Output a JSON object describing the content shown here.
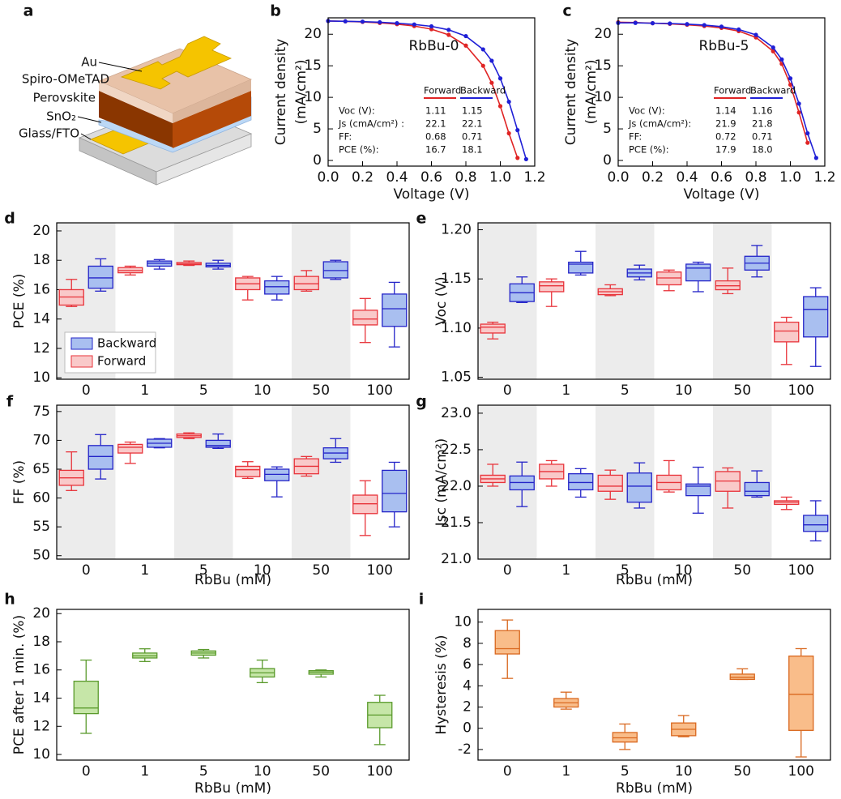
{
  "diagram": {
    "panel": "a",
    "labels": [
      "Au",
      "Spiro-OMeTAD",
      "Perovskite",
      "SnO₂",
      "Glass/FTO"
    ]
  },
  "chart_data": [
    {
      "panel": "b",
      "type": "line",
      "annotation": "RbBu-0",
      "xlabel": "Voltage (V)",
      "ylabel": [
        "Current density",
        "(mA/cm²)"
      ],
      "xlim": [
        0,
        1.2
      ],
      "ylim": [
        -0.9,
        22.6
      ],
      "xticks": [
        {
          "value": 0,
          "label": "0.0"
        },
        0.2,
        0.4,
        0.6,
        0.8,
        {
          "value": 1,
          "label": "1.0"
        },
        1.2
      ],
      "yticks": [
        0,
        5,
        10,
        15,
        20
      ],
      "x": [
        0,
        0.1,
        0.2,
        0.3,
        0.4,
        0.5,
        0.6,
        0.7,
        0.8,
        0.9,
        0.95,
        1.0,
        1.05,
        1.1,
        1.15
      ],
      "series": [
        {
          "name": "Forward",
          "color": "#e02424",
          "values": [
            22.1,
            22.05,
            21.95,
            21.8,
            21.6,
            21.3,
            20.8,
            19.9,
            18.2,
            15.0,
            12.3,
            8.6,
            4.3,
            0.4,
            null
          ]
        },
        {
          "name": "Backward",
          "color": "#1f1fd6",
          "values": [
            22.1,
            22.05,
            22.0,
            21.9,
            21.75,
            21.55,
            21.25,
            20.7,
            19.7,
            17.6,
            15.8,
            13.0,
            9.3,
            4.8,
            0.2
          ]
        }
      ],
      "table": [
        {
          "label": "Voc (V):",
          "values": [
            "1.11",
            "1.15"
          ]
        },
        {
          "label": "Js (cmA/cm²) :",
          "values": [
            "22.1",
            "22.1"
          ]
        },
        {
          "label": "FF:",
          "values": [
            "0.68",
            "0.71"
          ]
        },
        {
          "label": "PCE (%):",
          "values": [
            "16.7",
            "18.1"
          ]
        }
      ]
    },
    {
      "panel": "c",
      "type": "line",
      "annotation": "RbBu-5",
      "xlabel": "Voltage (V)",
      "ylabel": [
        "Current density",
        "(mA/cm²)"
      ],
      "xlim": [
        0,
        1.2
      ],
      "ylim": [
        -0.9,
        22.6
      ],
      "xticks": [
        {
          "value": 0,
          "label": "0.0"
        },
        0.2,
        0.4,
        0.6,
        0.8,
        {
          "value": 1,
          "label": "1.0"
        },
        1.2
      ],
      "yticks": [
        0,
        5,
        10,
        15,
        20
      ],
      "x": [
        0,
        0.1,
        0.2,
        0.3,
        0.4,
        0.5,
        0.6,
        0.7,
        0.8,
        0.9,
        0.95,
        1.0,
        1.05,
        1.1,
        1.15
      ],
      "series": [
        {
          "name": "Forward",
          "color": "#e02424",
          "values": [
            21.9,
            21.85,
            21.75,
            21.65,
            21.5,
            21.3,
            21.0,
            20.5,
            19.5,
            17.3,
            15.3,
            12.0,
            7.6,
            2.8,
            null
          ]
        },
        {
          "name": "Backward",
          "color": "#1f1fd6",
          "values": [
            21.8,
            21.8,
            21.75,
            21.7,
            21.6,
            21.45,
            21.2,
            20.75,
            19.9,
            17.9,
            16.0,
            13.0,
            9.0,
            4.3,
            0.4
          ]
        }
      ],
      "table": [
        {
          "label": "Voc (V):",
          "values": [
            "1.14",
            "1.16"
          ]
        },
        {
          "label": "Js (cmA/cm²):",
          "values": [
            "21.9",
            "21.8"
          ]
        },
        {
          "label": "FF:",
          "values": [
            "0.72",
            "0.71"
          ]
        },
        {
          "label": "PCE (%):",
          "values": [
            "17.9",
            "18.0"
          ]
        }
      ]
    },
    {
      "panel": "d",
      "type": "box",
      "ylabel": "PCE (%)",
      "band_shading": true,
      "legend": "lower left",
      "categories": [
        "0",
        "1",
        "5",
        "10",
        "50",
        "100"
      ],
      "ylim": [
        9.9,
        20.55
      ],
      "yticks": [
        10,
        12,
        14,
        16,
        18,
        20
      ],
      "series": [
        {
          "name": "Forward",
          "color": "#e8333a",
          "fill": "#f9c9c9",
          "values": [
            {
              "min": 14.85,
              "q1": 14.95,
              "median": 15.5,
              "q3": 16.0,
              "max": 16.7
            },
            {
              "min": 17.0,
              "q1": 17.15,
              "median": 17.3,
              "q3": 17.5,
              "max": 17.6
            },
            {
              "min": 17.65,
              "q1": 17.7,
              "median": 17.75,
              "q3": 17.85,
              "max": 17.95
            },
            {
              "min": 15.3,
              "q1": 16.0,
              "median": 16.4,
              "q3": 16.8,
              "max": 16.9
            },
            {
              "min": 15.9,
              "q1": 16.0,
              "median": 16.4,
              "q3": 16.9,
              "max": 17.3
            },
            {
              "min": 12.4,
              "q1": 13.6,
              "median": 14.0,
              "q3": 14.6,
              "max": 15.4
            }
          ]
        },
        {
          "name": "Backward",
          "color": "#2424c8",
          "fill": "#a9bff0",
          "values": [
            {
              "min": 15.9,
              "q1": 16.1,
              "median": 16.8,
              "q3": 17.6,
              "max": 18.1
            },
            {
              "min": 17.4,
              "q1": 17.6,
              "median": 17.8,
              "q3": 17.95,
              "max": 18.05
            },
            {
              "min": 17.4,
              "q1": 17.55,
              "median": 17.65,
              "q3": 17.8,
              "max": 18.0
            },
            {
              "min": 15.3,
              "q1": 15.7,
              "median": 16.2,
              "q3": 16.6,
              "max": 16.9
            },
            {
              "min": 16.7,
              "q1": 16.8,
              "median": 17.3,
              "q3": 17.9,
              "max": 18.0
            },
            {
              "min": 12.1,
              "q1": 13.5,
              "median": 14.7,
              "q3": 15.7,
              "max": 16.5
            }
          ]
        }
      ]
    },
    {
      "panel": "e",
      "type": "box",
      "ylabel": "Voc (V)",
      "band_shading": true,
      "categories": [
        "0",
        "1",
        "5",
        "10",
        "50",
        "100"
      ],
      "ylim": [
        1.048,
        1.207
      ],
      "yticks": [
        1.05,
        {
          "value": 1.1,
          "label": "1.10"
        },
        1.15,
        {
          "value": 1.2,
          "label": "1.20"
        }
      ],
      "series": [
        {
          "name": "Forward",
          "color": "#e8333a",
          "fill": "#f9c9c9",
          "values": [
            {
              "min": 1.089,
              "q1": 1.095,
              "median": 1.101,
              "q3": 1.104,
              "max": 1.106
            },
            {
              "min": 1.122,
              "q1": 1.137,
              "median": 1.143,
              "q3": 1.147,
              "max": 1.15
            },
            {
              "min": 1.133,
              "q1": 1.134,
              "median": 1.137,
              "q3": 1.14,
              "max": 1.144
            },
            {
              "min": 1.138,
              "q1": 1.144,
              "median": 1.151,
              "q3": 1.157,
              "max": 1.159
            },
            {
              "min": 1.135,
              "q1": 1.139,
              "median": 1.143,
              "q3": 1.148,
              "max": 1.161
            },
            {
              "min": 1.063,
              "q1": 1.086,
              "median": 1.097,
              "q3": 1.106,
              "max": 1.111
            }
          ]
        },
        {
          "name": "Backward",
          "color": "#2424c8",
          "fill": "#a9bff0",
          "values": [
            {
              "min": 1.126,
              "q1": 1.127,
              "median": 1.136,
              "q3": 1.145,
              "max": 1.152
            },
            {
              "min": 1.154,
              "q1": 1.156,
              "median": 1.165,
              "q3": 1.167,
              "max": 1.178
            },
            {
              "min": 1.149,
              "q1": 1.152,
              "median": 1.156,
              "q3": 1.16,
              "max": 1.164
            },
            {
              "min": 1.137,
              "q1": 1.148,
              "median": 1.161,
              "q3": 1.165,
              "max": 1.167
            },
            {
              "min": 1.152,
              "q1": 1.159,
              "median": 1.166,
              "q3": 1.173,
              "max": 1.184
            },
            {
              "min": 1.061,
              "q1": 1.091,
              "median": 1.119,
              "q3": 1.132,
              "max": 1.141
            }
          ]
        }
      ]
    },
    {
      "panel": "f",
      "type": "box",
      "ylabel": "FF (%)",
      "xlabel": "RbBu (mM)",
      "band_shading": true,
      "categories": [
        "0",
        "1",
        "5",
        "10",
        "50",
        "100"
      ],
      "ylim": [
        49.4,
        76.1
      ],
      "yticks": [
        50,
        55,
        60,
        65,
        70,
        75
      ],
      "series": [
        {
          "name": "Forward",
          "color": "#e8333a",
          "fill": "#f9c9c9",
          "values": [
            {
              "min": 61.3,
              "q1": 62.2,
              "median": 63.5,
              "q3": 64.8,
              "max": 68.0
            },
            {
              "min": 66.0,
              "q1": 67.8,
              "median": 68.8,
              "q3": 69.3,
              "max": 69.7
            },
            {
              "min": 70.3,
              "q1": 70.5,
              "median": 70.8,
              "q3": 71.1,
              "max": 71.3
            },
            {
              "min": 63.4,
              "q1": 63.7,
              "median": 64.9,
              "q3": 65.5,
              "max": 66.3
            },
            {
              "min": 63.8,
              "q1": 64.2,
              "median": 65.5,
              "q3": 66.8,
              "max": 67.2
            },
            {
              "min": 53.5,
              "q1": 57.3,
              "median": 59.0,
              "q3": 60.5,
              "max": 63.0
            }
          ]
        },
        {
          "name": "Backward",
          "color": "#2424c8",
          "fill": "#a9bff0",
          "values": [
            {
              "min": 63.3,
              "q1": 65.0,
              "median": 67.2,
              "q3": 69.1,
              "max": 71.0
            },
            {
              "min": 68.7,
              "q1": 68.8,
              "median": 69.5,
              "q3": 70.2,
              "max": 70.3
            },
            {
              "min": 68.6,
              "q1": 68.8,
              "median": 69.1,
              "q3": 70.0,
              "max": 71.1
            },
            {
              "min": 60.2,
              "q1": 63.0,
              "median": 64.1,
              "q3": 65.0,
              "max": 65.4
            },
            {
              "min": 66.2,
              "q1": 66.8,
              "median": 67.8,
              "q3": 68.7,
              "max": 70.3
            },
            {
              "min": 55.0,
              "q1": 57.6,
              "median": 60.8,
              "q3": 64.8,
              "max": 66.2
            }
          ]
        }
      ]
    },
    {
      "panel": "g",
      "type": "box",
      "ylabel": "Jsc (mA/cm²)",
      "xlabel": "RbBu (mM)",
      "band_shading": true,
      "categories": [
        "0",
        "1",
        "5",
        "10",
        "50",
        "100"
      ],
      "ylim": [
        21,
        23.11
      ],
      "yticks": [
        {
          "value": 21,
          "label": "21.0"
        },
        21.5,
        {
          "value": 22,
          "label": "22.0"
        },
        22.5,
        {
          "value": 23,
          "label": "23.0"
        }
      ],
      "series": [
        {
          "name": "Forward",
          "color": "#e8333a",
          "fill": "#f9c9c9",
          "values": [
            {
              "min": 22.0,
              "q1": 22.05,
              "median": 22.1,
              "q3": 22.15,
              "max": 22.3
            },
            {
              "min": 22.0,
              "q1": 22.1,
              "median": 22.2,
              "q3": 22.3,
              "max": 22.35
            },
            {
              "min": 21.82,
              "q1": 21.93,
              "median": 22.0,
              "q3": 22.15,
              "max": 22.22
            },
            {
              "min": 21.92,
              "q1": 21.95,
              "median": 22.05,
              "q3": 22.15,
              "max": 22.35
            },
            {
              "min": 21.7,
              "q1": 21.93,
              "median": 22.07,
              "q3": 22.2,
              "max": 22.25
            },
            {
              "min": 21.68,
              "q1": 21.75,
              "median": 21.78,
              "q3": 21.8,
              "max": 21.85
            }
          ]
        },
        {
          "name": "Backward",
          "color": "#2424c8",
          "fill": "#a9bff0",
          "values": [
            {
              "min": 21.72,
              "q1": 21.95,
              "median": 22.05,
              "q3": 22.14,
              "max": 22.33
            },
            {
              "min": 21.85,
              "q1": 21.95,
              "median": 22.05,
              "q3": 22.17,
              "max": 22.24
            },
            {
              "min": 21.7,
              "q1": 21.78,
              "median": 22.0,
              "q3": 22.18,
              "max": 22.32
            },
            {
              "min": 21.63,
              "q1": 21.87,
              "median": 22.0,
              "q3": 22.03,
              "max": 22.26
            },
            {
              "min": 21.85,
              "q1": 21.87,
              "median": 21.93,
              "q3": 22.05,
              "max": 22.21
            },
            {
              "min": 21.25,
              "q1": 21.38,
              "median": 21.47,
              "q3": 21.6,
              "max": 21.8
            }
          ]
        }
      ]
    },
    {
      "panel": "h",
      "type": "box",
      "ylabel": "PCE after 1 min. (%)",
      "xlabel": "RbBu (mM)",
      "categories": [
        "0",
        "1",
        "5",
        "10",
        "50",
        "100"
      ],
      "ylim": [
        9.6,
        20.3
      ],
      "yticks": [
        10,
        12,
        14,
        16,
        18,
        20
      ],
      "series": [
        {
          "color": "#5a9a2c",
          "fill": "#c6e6a8",
          "values": [
            {
              "min": 11.5,
              "q1": 12.9,
              "median": 13.3,
              "q3": 15.2,
              "max": 16.7
            },
            {
              "min": 16.6,
              "q1": 16.85,
              "median": 17.0,
              "q3": 17.2,
              "max": 17.5
            },
            {
              "min": 16.85,
              "q1": 17.05,
              "median": 17.2,
              "q3": 17.35,
              "max": 17.45
            },
            {
              "min": 15.1,
              "q1": 15.5,
              "median": 15.8,
              "q3": 16.1,
              "max": 16.7
            },
            {
              "min": 15.5,
              "q1": 15.7,
              "median": 15.85,
              "q3": 15.95,
              "max": 16.0
            },
            {
              "min": 10.7,
              "q1": 11.9,
              "median": 12.8,
              "q3": 13.7,
              "max": 14.2
            }
          ]
        }
      ]
    },
    {
      "panel": "i",
      "type": "box",
      "ylabel": "Hysteresis (%)",
      "xlabel": "RbBu (mM)",
      "categories": [
        "0",
        "1",
        "5",
        "10",
        "50",
        "100"
      ],
      "ylim": [
        -3,
        11.2
      ],
      "yticks": [
        -2,
        0,
        2,
        4,
        6,
        8,
        10
      ],
      "series": [
        {
          "color": "#d9681f",
          "fill": "#f9bd8a",
          "values": [
            {
              "min": 4.7,
              "q1": 7.0,
              "median": 7.5,
              "q3": 9.2,
              "max": 10.2
            },
            {
              "min": 1.8,
              "q1": 2.0,
              "median": 2.4,
              "q3": 2.8,
              "max": 3.4
            },
            {
              "min": -2.0,
              "q1": -1.3,
              "median": -0.9,
              "q3": -0.4,
              "max": 0.4
            },
            {
              "min": -0.8,
              "q1": -0.7,
              "median": -0.1,
              "q3": 0.5,
              "max": 1.2
            },
            {
              "min": 4.6,
              "q1": 4.6,
              "median": 4.8,
              "q3": 5.1,
              "max": 5.6
            },
            {
              "min": -2.7,
              "q1": -0.2,
              "median": 3.2,
              "q3": 6.8,
              "max": 7.5
            }
          ]
        }
      ]
    }
  ]
}
